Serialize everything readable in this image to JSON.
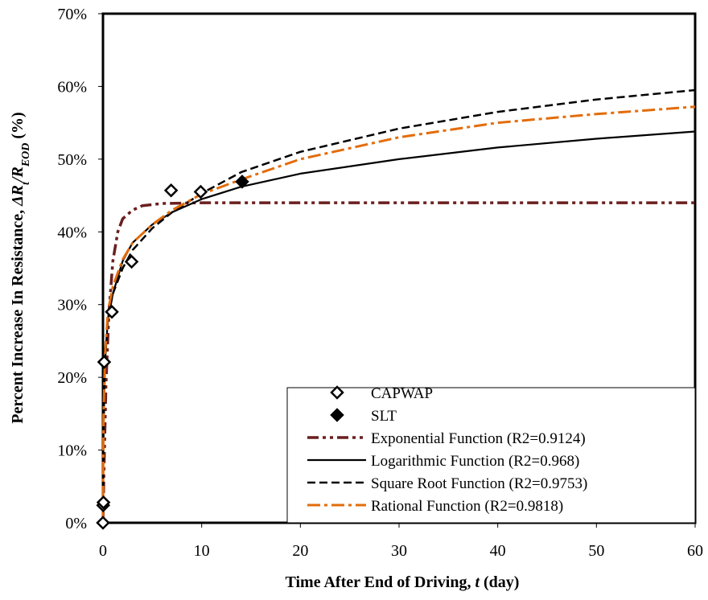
{
  "chart_data": {
    "type": "scatter",
    "title": "",
    "xlabel_parts": [
      "Time After End of Driving, ",
      "t",
      " (day)"
    ],
    "ylabel_parts": [
      "Percent Increase In Resistance, ",
      "ΔR",
      "t",
      "/R",
      "EOD",
      " (%)"
    ],
    "xlim": [
      0,
      60
    ],
    "ylim": [
      0,
      0.7
    ],
    "x_ticks": [
      0,
      10,
      20,
      30,
      40,
      50,
      60
    ],
    "x_tick_labels": [
      "0",
      "10",
      "20",
      "30",
      "40",
      "50",
      "60"
    ],
    "y_ticks": [
      0,
      0.1,
      0.2,
      0.3,
      0.4,
      0.5,
      0.6,
      0.7
    ],
    "y_tick_labels": [
      "0%",
      "10%",
      "20%",
      "30%",
      "40%",
      "50%",
      "60%",
      "70%"
    ],
    "grid": false,
    "legend_position": "bottom-right",
    "series": [
      {
        "name": "CAPWAP",
        "kind": "markers",
        "marker": "diamond-open",
        "color": "#000000",
        "points": [
          [
            0.0,
            0.0
          ],
          [
            0.02,
            0.024
          ],
          [
            0.05,
            0.028
          ],
          [
            0.12,
            0.221
          ],
          [
            0.9,
            0.29
          ],
          [
            2.9,
            0.359
          ],
          [
            6.9,
            0.457
          ],
          [
            9.9,
            0.455
          ]
        ]
      },
      {
        "name": "SLT",
        "kind": "markers",
        "marker": "diamond-filled",
        "color": "#000000",
        "points": [
          [
            14.1,
            0.469
          ]
        ]
      },
      {
        "name": "Exponential Function (R2=0.9124)",
        "kind": "line",
        "dash": "dashdotdot",
        "color": "#6b1f1f",
        "points": [
          [
            0,
            0.0
          ],
          [
            0.1,
            0.07
          ],
          [
            0.3,
            0.19
          ],
          [
            0.6,
            0.29
          ],
          [
            1.0,
            0.36
          ],
          [
            1.5,
            0.4
          ],
          [
            2.0,
            0.418
          ],
          [
            3.0,
            0.43
          ],
          [
            4.0,
            0.436
          ],
          [
            6.0,
            0.439
          ],
          [
            10,
            0.44
          ],
          [
            20,
            0.44
          ],
          [
            40,
            0.44
          ],
          [
            60,
            0.44
          ]
        ]
      },
      {
        "name": "Logarithmic Function (R2=0.968)",
        "kind": "line",
        "dash": "solid",
        "color": "#000000",
        "points": [
          [
            0,
            0.0
          ],
          [
            0.05,
            0.12
          ],
          [
            0.2,
            0.22
          ],
          [
            0.5,
            0.28
          ],
          [
            1,
            0.315
          ],
          [
            2,
            0.36
          ],
          [
            3,
            0.385
          ],
          [
            5,
            0.41
          ],
          [
            7,
            0.427
          ],
          [
            10,
            0.445
          ],
          [
            14,
            0.462
          ],
          [
            20,
            0.48
          ],
          [
            30,
            0.5
          ],
          [
            40,
            0.516
          ],
          [
            50,
            0.528
          ],
          [
            60,
            0.538
          ]
        ]
      },
      {
        "name": "Square Root Function (R2=0.9753)",
        "kind": "line",
        "dash": "dashed",
        "color": "#000000",
        "points": [
          [
            0,
            0.0
          ],
          [
            0.05,
            0.13
          ],
          [
            0.2,
            0.22
          ],
          [
            0.5,
            0.28
          ],
          [
            1,
            0.315
          ],
          [
            2,
            0.35
          ],
          [
            3,
            0.375
          ],
          [
            5,
            0.405
          ],
          [
            7,
            0.427
          ],
          [
            10,
            0.453
          ],
          [
            14,
            0.482
          ],
          [
            20,
            0.51
          ],
          [
            30,
            0.542
          ],
          [
            40,
            0.565
          ],
          [
            50,
            0.582
          ],
          [
            60,
            0.595
          ]
        ]
      },
      {
        "name": "Rational Function (R2=0.9818)",
        "kind": "line",
        "dash": "dashdot",
        "color": "#e36c0a",
        "points": [
          [
            0,
            0.0
          ],
          [
            0.05,
            0.14
          ],
          [
            0.2,
            0.23
          ],
          [
            0.5,
            0.29
          ],
          [
            1,
            0.325
          ],
          [
            2,
            0.362
          ],
          [
            3,
            0.385
          ],
          [
            5,
            0.41
          ],
          [
            7,
            0.43
          ],
          [
            10,
            0.452
          ],
          [
            14,
            0.472
          ],
          [
            20,
            0.5
          ],
          [
            30,
            0.53
          ],
          [
            40,
            0.55
          ],
          [
            50,
            0.562
          ],
          [
            60,
            0.572
          ]
        ]
      }
    ]
  }
}
